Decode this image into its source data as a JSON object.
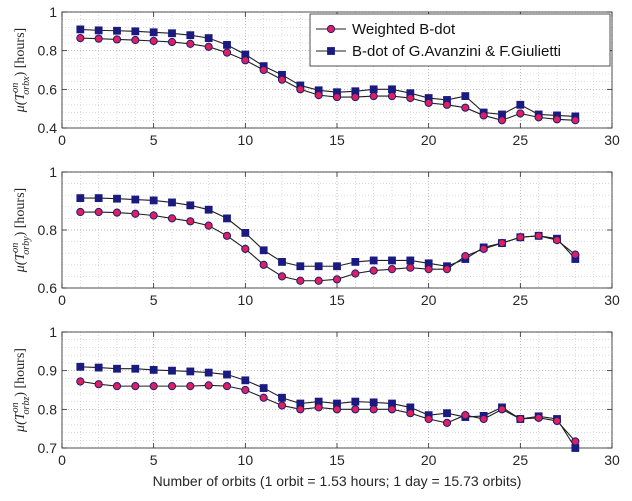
{
  "chart_data": [
    {
      "type": "line",
      "ylabel_text": "μ(T_orbx^on) [hours]",
      "ylabel_sub": "orbx",
      "xlim": [
        0,
        30
      ],
      "ylim": [
        0.4,
        1.0
      ],
      "xticks": [
        0,
        5,
        10,
        15,
        20,
        25,
        30
      ],
      "yticks": [
        0.4,
        0.6,
        0.8,
        1.0
      ],
      "ytick_labels": [
        "0.4",
        "0.6",
        "0.8",
        "1"
      ],
      "grid": true,
      "legend_position": "top-right",
      "x": [
        1,
        2,
        3,
        4,
        5,
        6,
        7,
        8,
        9,
        10,
        11,
        12,
        13,
        14,
        15,
        16,
        17,
        18,
        19,
        20,
        21,
        22,
        23,
        24,
        25,
        26,
        27,
        28
      ],
      "series": [
        {
          "name": "Weighted B-dot",
          "marker": "circle",
          "color": "#e0205a",
          "edge": "#1a1a80",
          "values": [
            0.865,
            0.862,
            0.858,
            0.855,
            0.85,
            0.845,
            0.835,
            0.82,
            0.79,
            0.75,
            0.7,
            0.65,
            0.6,
            0.57,
            0.56,
            0.56,
            0.565,
            0.565,
            0.555,
            0.53,
            0.52,
            0.505,
            0.465,
            0.44,
            0.475,
            0.455,
            0.445,
            0.44
          ]
        },
        {
          "name": "B-dot of G.Avanzini & F.Giulietti",
          "marker": "square",
          "color": "#1a1a80",
          "edge": "#1a1a80",
          "values": [
            0.91,
            0.905,
            0.903,
            0.9,
            0.895,
            0.89,
            0.88,
            0.865,
            0.83,
            0.78,
            0.72,
            0.675,
            0.62,
            0.595,
            0.585,
            0.59,
            0.6,
            0.6,
            0.58,
            0.555,
            0.545,
            0.565,
            0.48,
            0.47,
            0.52,
            0.47,
            0.465,
            0.46
          ]
        }
      ]
    },
    {
      "type": "line",
      "ylabel_text": "μ(T_orby^on) [hours]",
      "ylabel_sub": "orby",
      "xlim": [
        0,
        30
      ],
      "ylim": [
        0.6,
        1.0
      ],
      "xticks": [
        0,
        5,
        10,
        15,
        20,
        25,
        30
      ],
      "yticks": [
        0.6,
        0.8,
        1.0
      ],
      "ytick_labels": [
        "0.6",
        "0.8",
        "1"
      ],
      "grid": true,
      "x": [
        1,
        2,
        3,
        4,
        5,
        6,
        7,
        8,
        9,
        10,
        11,
        12,
        13,
        14,
        15,
        16,
        17,
        18,
        19,
        20,
        21,
        22,
        23,
        24,
        25,
        26,
        27,
        28
      ],
      "series": [
        {
          "name": "Weighted B-dot",
          "marker": "circle",
          "color": "#e0205a",
          "edge": "#1a1a80",
          "values": [
            0.862,
            0.862,
            0.86,
            0.856,
            0.85,
            0.84,
            0.83,
            0.815,
            0.78,
            0.735,
            0.68,
            0.64,
            0.625,
            0.625,
            0.63,
            0.65,
            0.66,
            0.665,
            0.67,
            0.665,
            0.665,
            0.71,
            0.735,
            0.755,
            0.775,
            0.78,
            0.765,
            0.715
          ]
        },
        {
          "name": "B-dot of G.Avanzini & F.Giulietti",
          "marker": "square",
          "color": "#1a1a80",
          "edge": "#1a1a80",
          "values": [
            0.91,
            0.91,
            0.908,
            0.905,
            0.902,
            0.895,
            0.885,
            0.87,
            0.84,
            0.79,
            0.73,
            0.69,
            0.675,
            0.675,
            0.675,
            0.69,
            0.695,
            0.695,
            0.695,
            0.685,
            0.675,
            0.7,
            0.74,
            0.755,
            0.775,
            0.78,
            0.77,
            0.7
          ]
        }
      ]
    },
    {
      "type": "line",
      "ylabel_text": "μ(T_orbz^on) [hours]",
      "ylabel_sub": "orbz",
      "xlabel": "Number of orbits (1 orbit = 1.53 hours; 1 day = 15.73 orbits)",
      "xlim": [
        0,
        30
      ],
      "ylim": [
        0.7,
        1.0
      ],
      "xticks": [
        0,
        5,
        10,
        15,
        20,
        25,
        30
      ],
      "yticks": [
        0.7,
        0.8,
        0.9,
        1.0
      ],
      "ytick_labels": [
        "0.7",
        "0.8",
        "0.9",
        "1"
      ],
      "grid": true,
      "x": [
        1,
        2,
        3,
        4,
        5,
        6,
        7,
        8,
        9,
        10,
        11,
        12,
        13,
        14,
        15,
        16,
        17,
        18,
        19,
        20,
        21,
        22,
        23,
        24,
        25,
        26,
        27,
        28
      ],
      "series": [
        {
          "name": "Weighted B-dot",
          "marker": "circle",
          "color": "#e0205a",
          "edge": "#1a1a80",
          "values": [
            0.872,
            0.865,
            0.86,
            0.86,
            0.86,
            0.86,
            0.86,
            0.862,
            0.86,
            0.85,
            0.83,
            0.81,
            0.8,
            0.805,
            0.8,
            0.8,
            0.8,
            0.8,
            0.79,
            0.775,
            0.765,
            0.785,
            0.775,
            0.8,
            0.775,
            0.778,
            0.77,
            0.717
          ]
        },
        {
          "name": "B-dot of G.Avanzini & F.Giulietti",
          "marker": "square",
          "color": "#1a1a80",
          "edge": "#1a1a80",
          "values": [
            0.91,
            0.908,
            0.905,
            0.905,
            0.902,
            0.9,
            0.898,
            0.895,
            0.89,
            0.875,
            0.855,
            0.83,
            0.815,
            0.82,
            0.815,
            0.82,
            0.818,
            0.815,
            0.805,
            0.785,
            0.79,
            0.78,
            0.783,
            0.805,
            0.775,
            0.782,
            0.775,
            0.7
          ]
        }
      ]
    }
  ]
}
